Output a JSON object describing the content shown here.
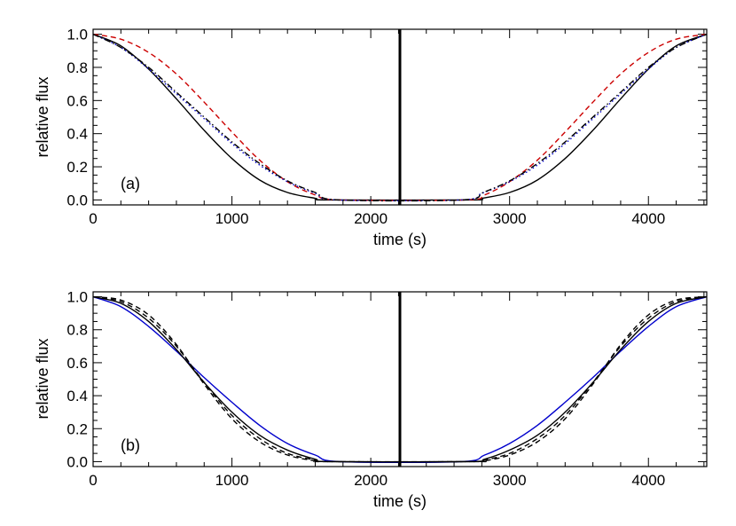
{
  "figure": {
    "xlabel": "time (s)",
    "ylabel": "relative flux"
  },
  "chart_data": [
    {
      "type": "line",
      "panel_label": "(a)",
      "xlabel": "time (s)",
      "ylabel": "relative flux",
      "xlim": [
        0,
        4420
      ],
      "ylim": [
        -0.03,
        1.03
      ],
      "x_ticks": [
        0,
        1000,
        2000,
        3000,
        4000
      ],
      "y_ticks": [
        0.0,
        0.2,
        0.4,
        0.6,
        0.8,
        1.0
      ],
      "x_tick_labels": [
        "0",
        "1000",
        "2000",
        "3000",
        "4000"
      ],
      "y_tick_labels": [
        "0.0",
        "0.2",
        "0.4",
        "0.6",
        "0.8",
        "1.0"
      ],
      "minor_x_step": 200,
      "minor_y_step": 0.05,
      "vertical_line": {
        "x": 2210,
        "color": "#000000"
      },
      "grid": false,
      "series": [
        {
          "color": "#000000",
          "style": "solid",
          "x": [
            0,
            200,
            400,
            600,
            800,
            1000,
            1200,
            1400,
            1600,
            1700,
            2710,
            2800,
            3000,
            3200,
            3400,
            3600,
            3800,
            4000,
            4200,
            4420
          ],
          "y": [
            1.0,
            0.93,
            0.79,
            0.61,
            0.42,
            0.25,
            0.12,
            0.045,
            0.01,
            0.0,
            0.0,
            0.01,
            0.045,
            0.12,
            0.25,
            0.42,
            0.61,
            0.79,
            0.93,
            1.0
          ]
        },
        {
          "color": "#cc0000",
          "style": "dashed",
          "x": [
            0,
            200,
            400,
            600,
            800,
            1000,
            1200,
            1400,
            1600,
            1780,
            2680,
            2820,
            3000,
            3200,
            3400,
            3600,
            3800,
            4000,
            4200,
            4420
          ],
          "y": [
            1.0,
            0.97,
            0.89,
            0.76,
            0.59,
            0.41,
            0.24,
            0.11,
            0.03,
            0.0,
            0.0,
            0.03,
            0.11,
            0.24,
            0.41,
            0.59,
            0.76,
            0.89,
            0.97,
            1.0
          ]
        },
        {
          "color": "#0000cc",
          "style": "dotted",
          "x": [
            0,
            200,
            400,
            600,
            800,
            1000,
            1200,
            1400,
            1600,
            1760,
            2650,
            2800,
            3000,
            3200,
            3400,
            3600,
            3800,
            4000,
            4200,
            4420
          ],
          "y": [
            1.0,
            0.92,
            0.79,
            0.64,
            0.49,
            0.34,
            0.21,
            0.11,
            0.04,
            0.0,
            0.0,
            0.04,
            0.11,
            0.21,
            0.34,
            0.49,
            0.64,
            0.79,
            0.92,
            1.0
          ]
        },
        {
          "color": "#000000",
          "style": "dashdot",
          "x": [
            0,
            200,
            400,
            600,
            800,
            1000,
            1200,
            1400,
            1600,
            1770,
            2660,
            2810,
            3000,
            3200,
            3400,
            3600,
            3800,
            4000,
            4200,
            4420
          ],
          "y": [
            1.0,
            0.92,
            0.8,
            0.65,
            0.5,
            0.35,
            0.22,
            0.115,
            0.045,
            0.0,
            0.0,
            0.045,
            0.115,
            0.22,
            0.35,
            0.5,
            0.65,
            0.8,
            0.92,
            1.0
          ]
        }
      ]
    },
    {
      "type": "line",
      "panel_label": "(b)",
      "xlabel": "time (s)",
      "ylabel": "relative flux",
      "xlim": [
        0,
        4420
      ],
      "ylim": [
        -0.03,
        1.03
      ],
      "x_ticks": [
        0,
        1000,
        2000,
        3000,
        4000
      ],
      "y_ticks": [
        0.0,
        0.2,
        0.4,
        0.6,
        0.8,
        1.0
      ],
      "x_tick_labels": [
        "0",
        "1000",
        "2000",
        "3000",
        "4000"
      ],
      "y_tick_labels": [
        "0.0",
        "0.2",
        "0.4",
        "0.6",
        "0.8",
        "1.0"
      ],
      "minor_x_step": 200,
      "minor_y_step": 0.05,
      "vertical_line": {
        "x": 2210,
        "color": "#000000"
      },
      "grid": false,
      "series": [
        {
          "color": "#0000cc",
          "style": "solid",
          "x": [
            0,
            200,
            400,
            600,
            800,
            1000,
            1200,
            1400,
            1600,
            1780,
            2650,
            2820,
            3000,
            3200,
            3400,
            3600,
            3800,
            4000,
            4200,
            4420
          ],
          "y": [
            1.0,
            0.94,
            0.82,
            0.67,
            0.51,
            0.36,
            0.22,
            0.11,
            0.04,
            0.0,
            0.0,
            0.04,
            0.11,
            0.22,
            0.36,
            0.51,
            0.67,
            0.82,
            0.94,
            1.0
          ]
        },
        {
          "color": "#000000",
          "style": "solid",
          "x": [
            0,
            200,
            400,
            600,
            800,
            1000,
            1200,
            1400,
            1600,
            1720,
            2700,
            2820,
            3000,
            3200,
            3400,
            3600,
            3800,
            4000,
            4200,
            4420
          ],
          "y": [
            1.0,
            0.96,
            0.85,
            0.68,
            0.48,
            0.3,
            0.16,
            0.07,
            0.015,
            0.0,
            0.0,
            0.015,
            0.07,
            0.16,
            0.3,
            0.48,
            0.68,
            0.85,
            0.96,
            1.0
          ]
        },
        {
          "color": "#000000",
          "style": "dashed",
          "x": [
            0,
            200,
            400,
            600,
            800,
            1000,
            1200,
            1400,
            1600,
            1700,
            2720,
            2820,
            3000,
            3200,
            3400,
            3600,
            3800,
            4000,
            4200,
            4420
          ],
          "y": [
            1.0,
            0.97,
            0.87,
            0.7,
            0.48,
            0.28,
            0.14,
            0.05,
            0.01,
            0.0,
            0.0,
            0.01,
            0.05,
            0.14,
            0.28,
            0.48,
            0.7,
            0.87,
            0.97,
            1.0
          ]
        },
        {
          "color": "#000000",
          "style": "dashed",
          "x": [
            0,
            200,
            400,
            600,
            800,
            1000,
            1200,
            1400,
            1600,
            1690,
            2730,
            2820,
            3000,
            3200,
            3400,
            3600,
            3800,
            4000,
            4200,
            4420
          ],
          "y": [
            1.0,
            0.98,
            0.89,
            0.71,
            0.47,
            0.26,
            0.12,
            0.04,
            0.005,
            0.0,
            0.0,
            0.005,
            0.04,
            0.12,
            0.26,
            0.47,
            0.71,
            0.89,
            0.98,
            1.0
          ]
        }
      ]
    }
  ]
}
